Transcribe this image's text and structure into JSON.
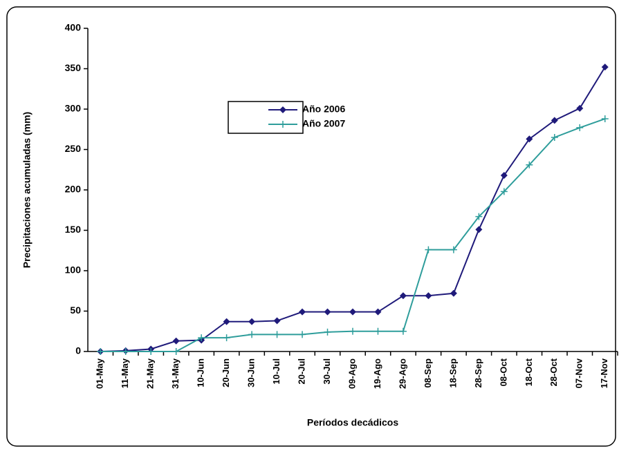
{
  "chart_data": {
    "type": "line",
    "categories": [
      "01-May",
      "11-May",
      "21-May",
      "31-May",
      "10-Jun",
      "20-Jun",
      "30-Jun",
      "10-Jul",
      "20-Jul",
      "30-Jul",
      "09-Ago",
      "19-Ago",
      "29-Ago",
      "08-Sep",
      "18-Sep",
      "28-Sep",
      "08-Oct",
      "18-Oct",
      "28-Oct",
      "07-Nov",
      "17-Nov"
    ],
    "series": [
      {
        "name": "Año 2006",
        "color": "#1f1a7a",
        "marker": "diamond",
        "values": [
          0,
          1,
          3,
          13,
          14,
          37,
          37,
          38,
          49,
          49,
          49,
          49,
          69,
          69,
          72,
          151,
          218,
          263,
          286,
          301,
          352
        ]
      },
      {
        "name": "Año 2007",
        "color": "#2e9d9b",
        "marker": "plus",
        "values": [
          0,
          0,
          0,
          0,
          17,
          17,
          21,
          21,
          21,
          24,
          25,
          25,
          25,
          126,
          126,
          167,
          198,
          231,
          265,
          277,
          288
        ]
      }
    ],
    "x_label": "Períodos decádicos",
    "y_label": "Precipitaciones acumuladas (mm)",
    "ylim": [
      0,
      400
    ],
    "yticks": [
      0,
      50,
      100,
      150,
      200,
      250,
      300,
      350,
      400
    ],
    "grid": false
  }
}
